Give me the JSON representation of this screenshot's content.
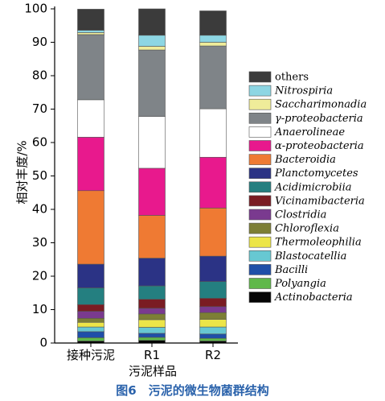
{
  "chart_data": {
    "type": "bar",
    "stacked": true,
    "categories": [
      "接种污泥",
      "R1",
      "R2"
    ],
    "xlabel": "污泥样品",
    "ylabel": "相对丰度/%",
    "ylim": [
      0,
      100
    ],
    "yticks": [
      0,
      10,
      20,
      30,
      40,
      50,
      60,
      70,
      80,
      90,
      100
    ],
    "legend_position": "right",
    "series": [
      {
        "name": "Actinobacteria",
        "color": "#050505",
        "italic": true,
        "values": [
          0.6,
          0.8,
          0.6
        ]
      },
      {
        "name": "Polyangia",
        "color": "#5fb84a",
        "italic": true,
        "values": [
          1.0,
          0.9,
          0.8
        ]
      },
      {
        "name": "Bacilli",
        "color": "#1f4fa8",
        "italic": true,
        "values": [
          1.8,
          1.2,
          1.3
        ]
      },
      {
        "name": "Blastocatellia",
        "color": "#67c8d2",
        "italic": true,
        "values": [
          1.4,
          1.8,
          2.1
        ]
      },
      {
        "name": "Thermoleophilia",
        "color": "#ece548",
        "italic": true,
        "values": [
          1.4,
          2.3,
          2.3
        ]
      },
      {
        "name": "Chloroflexia",
        "color": "#7d7f35",
        "italic": true,
        "values": [
          1.2,
          1.7,
          2.0
        ]
      },
      {
        "name": "Clostridia",
        "color": "#7a3a8f",
        "italic": true,
        "values": [
          2.1,
          1.7,
          1.8
        ]
      },
      {
        "name": "Vicinamibacteria",
        "color": "#7a1c23",
        "italic": true,
        "values": [
          2.0,
          2.7,
          2.5
        ]
      },
      {
        "name": "Acidimicrobiia",
        "color": "#247f80",
        "italic": true,
        "values": [
          5.0,
          4.0,
          5.0
        ]
      },
      {
        "name": "Planctomycetes",
        "color": "#2b3385",
        "italic": true,
        "values": [
          7.1,
          8.3,
          7.6
        ]
      },
      {
        "name": "Bacteroidia",
        "color": "#ef7a33",
        "italic": true,
        "values": [
          22.0,
          12.8,
          14.4
        ]
      },
      {
        "name": "α-proteobacteria",
        "color": "#e8198d",
        "italic": true,
        "values": [
          16.0,
          14.1,
          15.2
        ]
      },
      {
        "name": "Anaerolineae",
        "color": "#ffffff",
        "italic": true,
        "values": [
          11.2,
          15.5,
          14.5
        ]
      },
      {
        "name": "γ-proteobacteria",
        "color": "#7f8488",
        "italic": true,
        "values": [
          19.5,
          19.9,
          18.8
        ]
      },
      {
        "name": "Saccharimonadia",
        "color": "#efec9a",
        "italic": true,
        "values": [
          0.6,
          1.1,
          1.1
        ]
      },
      {
        "name": "Nitrospiria",
        "color": "#8dd6e3",
        "italic": true,
        "values": [
          0.7,
          3.3,
          2.1
        ]
      },
      {
        "name": "others",
        "color": "#3b3b3b",
        "italic": false,
        "values": [
          6.3,
          7.9,
          7.3
        ]
      }
    ]
  },
  "caption": "图6　污泥的微生物菌群结构"
}
